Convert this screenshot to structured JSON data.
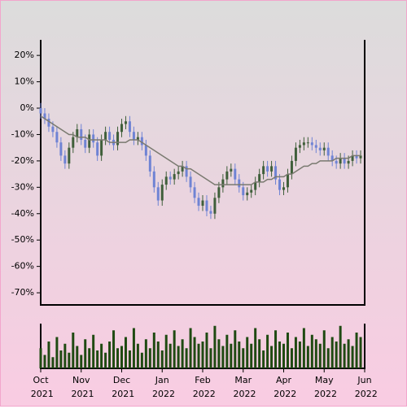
{
  "chart_data": {
    "type": "candlestick",
    "x": [
      0,
      1,
      2,
      3,
      4,
      5,
      6,
      7,
      8,
      9,
      10,
      11,
      12,
      13,
      14,
      15,
      16,
      17,
      18,
      19,
      20,
      21,
      22,
      23,
      24,
      25,
      26,
      27,
      28,
      29,
      30,
      31,
      32,
      33,
      34,
      35,
      36,
      37,
      38,
      39,
      40,
      41,
      42,
      43,
      44,
      45,
      46,
      47,
      48,
      49,
      50,
      51,
      52,
      53,
      54,
      55,
      56,
      57,
      58,
      59,
      60,
      61,
      62,
      63,
      64,
      65,
      66,
      67,
      68,
      69,
      70,
      71,
      72,
      73,
      74,
      75,
      76,
      77,
      78,
      79
    ],
    "open": [
      0,
      -2,
      -4,
      -7,
      -9,
      -13,
      -18,
      -21,
      -15,
      -11,
      -8,
      -12,
      -15,
      -10,
      -13,
      -18,
      -12,
      -9,
      -12,
      -14,
      -9,
      -6,
      -5,
      -9,
      -12,
      -11,
      -14,
      -18,
      -24,
      -30,
      -35,
      -29,
      -26,
      -27,
      -25,
      -24,
      -22,
      -26,
      -30,
      -34,
      -37,
      -35,
      -39,
      -40,
      -34,
      -30,
      -27,
      -24,
      -23,
      -27,
      -30,
      -33,
      -32,
      -31,
      -28,
      -25,
      -22,
      -24,
      -22,
      -27,
      -31,
      -30,
      -25,
      -20,
      -15,
      -14,
      -13,
      -13,
      -14,
      -15,
      -16,
      -15,
      -18,
      -20,
      -21,
      -19,
      -21,
      -20,
      -18,
      -19
    ],
    "high": [
      2,
      0,
      -2,
      -5,
      -7,
      -11,
      -16,
      -13,
      -9,
      -6,
      -6,
      -10,
      -8,
      -8,
      -11,
      -10,
      -7,
      -7,
      -10,
      -7,
      -4,
      -3,
      -3,
      -7,
      -9,
      -9,
      -12,
      -16,
      -22,
      -28,
      -27,
      -24,
      -24,
      -23,
      -22,
      -20,
      -20,
      -24,
      -28,
      -32,
      -33,
      -33,
      -37,
      -32,
      -28,
      -25,
      -22,
      -21,
      -21,
      -25,
      -28,
      -30,
      -29,
      -26,
      -23,
      -20,
      -20,
      -20,
      -20,
      -25,
      -28,
      -23,
      -18,
      -13,
      -12,
      -11,
      -11,
      -11,
      -12,
      -13,
      -13,
      -13,
      -16,
      -18,
      -17,
      -17,
      -18,
      -16,
      -16,
      -16
    ],
    "low": [
      -4,
      -6,
      -9,
      -11,
      -15,
      -20,
      -23,
      -23,
      -17,
      -13,
      -14,
      -17,
      -17,
      -15,
      -20,
      -20,
      -14,
      -14,
      -16,
      -16,
      -11,
      -8,
      -11,
      -14,
      -14,
      -16,
      -20,
      -26,
      -32,
      -37,
      -37,
      -31,
      -29,
      -29,
      -27,
      -26,
      -28,
      -32,
      -36,
      -39,
      -39,
      -41,
      -42,
      -42,
      -36,
      -32,
      -29,
      -26,
      -29,
      -32,
      -35,
      -35,
      -34,
      -33,
      -30,
      -27,
      -26,
      -26,
      -29,
      -33,
      -33,
      -32,
      -27,
      -22,
      -17,
      -16,
      -15,
      -16,
      -17,
      -18,
      -18,
      -20,
      -22,
      -23,
      -23,
      -23,
      -23,
      -22,
      -21,
      -21
    ],
    "close": [
      -2,
      -4,
      -7,
      -9,
      -13,
      -18,
      -21,
      -15,
      -11,
      -8,
      -12,
      -15,
      -10,
      -13,
      -18,
      -12,
      -9,
      -12,
      -14,
      -9,
      -6,
      -5,
      -9,
      -12,
      -11,
      -14,
      -18,
      -24,
      -30,
      -35,
      -29,
      -26,
      -27,
      -25,
      -24,
      -22,
      -26,
      -30,
      -34,
      -37,
      -35,
      -39,
      -40,
      -34,
      -30,
      -27,
      -24,
      -23,
      -27,
      -30,
      -33,
      -32,
      -31,
      -28,
      -25,
      -22,
      -24,
      -22,
      -27,
      -31,
      -30,
      -25,
      -20,
      -15,
      -14,
      -13,
      -13,
      -14,
      -15,
      -16,
      -15,
      -18,
      -20,
      -21,
      -19,
      -21,
      -20,
      -18,
      -19,
      -18
    ],
    "up_color": "#3f5f3a",
    "down_color": "#6f83d4",
    "moving_average": {
      "color": "#7a7a70",
      "values": [
        -3,
        -4,
        -5,
        -6,
        -7,
        -8,
        -9,
        -10,
        -10,
        -11,
        -11,
        -11,
        -12,
        -12,
        -12,
        -12,
        -12,
        -13,
        -13,
        -13,
        -13,
        -13,
        -12,
        -12,
        -12,
        -13,
        -14,
        -15,
        -16,
        -17,
        -18,
        -19,
        -20,
        -21,
        -22,
        -22,
        -23,
        -23,
        -24,
        -25,
        -26,
        -27,
        -28,
        -29,
        -29,
        -29,
        -29,
        -29,
        -29,
        -29,
        -29,
        -29,
        -29,
        -28,
        -28,
        -28,
        -27,
        -27,
        -26,
        -26,
        -26,
        -25,
        -25,
        -24,
        -23,
        -22,
        -22,
        -21,
        -21,
        -20,
        -20,
        -20,
        -20,
        -19,
        -19,
        -19,
        -19,
        -18,
        -18,
        -18
      ]
    },
    "volume": {
      "color": "#1f4a12",
      "ylim": [
        0,
        100
      ],
      "values": [
        45,
        30,
        60,
        25,
        70,
        40,
        55,
        35,
        80,
        50,
        30,
        65,
        45,
        75,
        40,
        55,
        35,
        60,
        85,
        45,
        50,
        70,
        40,
        90,
        55,
        35,
        65,
        45,
        80,
        60,
        40,
        75,
        55,
        85,
        50,
        65,
        45,
        90,
        70,
        55,
        60,
        80,
        45,
        95,
        65,
        50,
        75,
        55,
        85,
        60,
        45,
        70,
        55,
        90,
        65,
        40,
        75,
        50,
        85,
        60,
        55,
        80,
        45,
        70,
        60,
        90,
        50,
        75,
        65,
        55,
        85,
        45,
        70,
        60,
        95,
        55,
        65,
        50,
        80,
        70
      ]
    },
    "xlim": [
      0,
      80
    ],
    "xticks": [
      {
        "value": 0,
        "label": "Oct 2021"
      },
      {
        "value": 10,
        "label": "Nov 2021"
      },
      {
        "value": 20,
        "label": "Dec 2021"
      },
      {
        "value": 30,
        "label": "Jan 2022"
      },
      {
        "value": 40,
        "label": "Feb 2022"
      },
      {
        "value": 50,
        "label": "Mar 2022"
      },
      {
        "value": 60,
        "label": "Apr 2022"
      },
      {
        "value": 70,
        "label": "May 2022"
      },
      {
        "value": 80,
        "label": "Jun 2022"
      }
    ],
    "ylim": [
      -74.6,
      25.9
    ],
    "yticks": [
      {
        "value": 20,
        "label": "20%"
      },
      {
        "value": 10,
        "label": "10%"
      },
      {
        "value": 0,
        "label": "0%"
      },
      {
        "value": -10,
        "label": "-10%"
      },
      {
        "value": -20,
        "label": "-20%"
      },
      {
        "value": -30,
        "label": "-30%"
      },
      {
        "value": -40,
        "label": "-40%"
      },
      {
        "value": -50,
        "label": "-50%"
      },
      {
        "value": -60,
        "label": "-60%"
      },
      {
        "value": -70,
        "label": "-70%"
      }
    ]
  }
}
